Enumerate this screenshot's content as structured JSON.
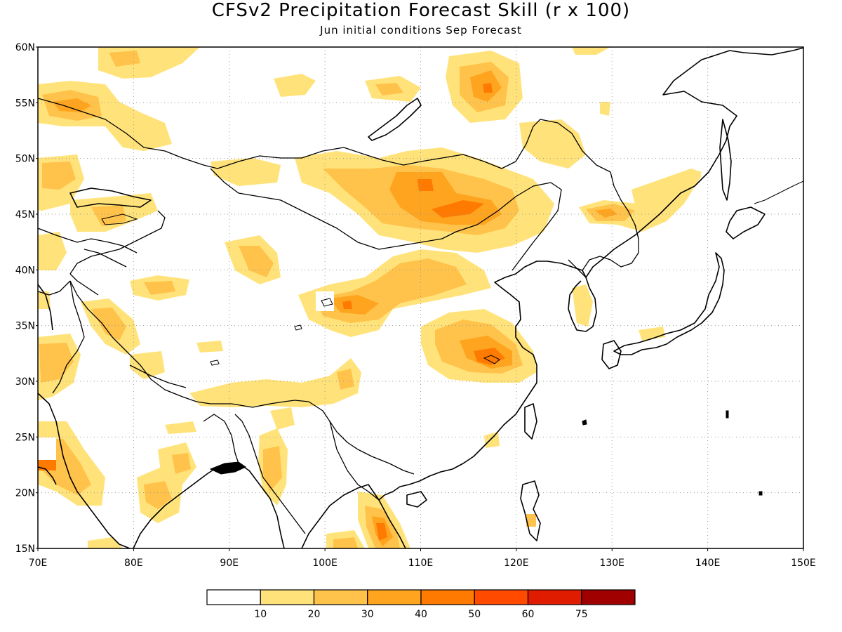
{
  "title": "CFSv2 Precipitation Forecast Skill (r x 100)",
  "subtitle": "Jun initial conditions  Sep Forecast",
  "map": {
    "lon_range": [
      70,
      150
    ],
    "lat_range": [
      15,
      60
    ],
    "lat_ticks": [
      "60N",
      "55N",
      "50N",
      "45N",
      "40N",
      "35N",
      "30N",
      "25N",
      "20N",
      "15N"
    ],
    "lon_ticks": [
      "70E",
      "80E",
      "90E",
      "100E",
      "110E",
      "120E",
      "130E",
      "140E",
      "150E"
    ],
    "grid": true,
    "grid_style": "dotted"
  },
  "colorbar": {
    "levels": [
      "10",
      "20",
      "30",
      "40",
      "50",
      "60",
      "75"
    ],
    "colors": [
      "#ffffff",
      "#ffe37a",
      "#ffc24a",
      "#ffa41e",
      "#ff7a00",
      "#ff4a00",
      "#e01c00",
      "#a00000"
    ]
  }
}
